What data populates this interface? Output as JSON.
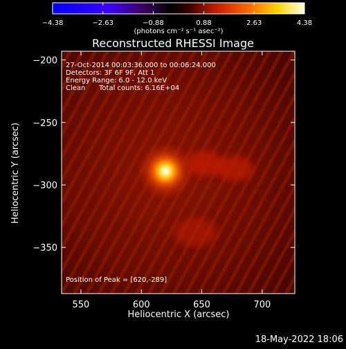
{
  "chart_data": {
    "type": "heatmap",
    "title": "Reconstructed RHESSI Image",
    "xlabel": "Heliocentric X (arcsec)",
    "ylabel": "Heliocentric Y (arcsec)",
    "xlim": [
      534,
      727
    ],
    "ylim": [
      -387,
      -193
    ],
    "x_ticks": [
      550,
      600,
      650,
      700
    ],
    "x_tick_labels": [
      "550",
      "600",
      "650",
      "700"
    ],
    "y_ticks": [
      -200,
      -250,
      -300,
      -350
    ],
    "y_tick_labels": [
      "−200",
      "−250",
      "−300",
      "−350"
    ],
    "colorbar": {
      "min": -4.38,
      "max": 4.38,
      "ticks": [
        -4.38,
        -2.63,
        -0.88,
        0.88,
        2.63,
        4.38
      ],
      "tick_labels": [
        "−4.38",
        "−2.63",
        "−0.88",
        "0.88",
        "2.63",
        "4.38"
      ],
      "label": "(photons cm⁻² s⁻¹ asec⁻²)",
      "colormap": "hot"
    },
    "annotations": {
      "time_range": "27-Oct-2014 00:03:36.000 to 00:06:24.000",
      "detectors": "Detectors: 3F 6F 9F, Att 1",
      "energy_range": "Energy Range: 6.0 - 12.0 keV",
      "clean_method": "Clean",
      "total_counts": "Total counts: 6.16E+04",
      "peak_position": "Position of Peak = [620,-289]"
    },
    "sources": [
      {
        "x": 620,
        "y": -289,
        "peak": 4.38,
        "sigma": 6
      },
      {
        "x": 652,
        "y": -283,
        "peak": 0.9,
        "sigma": 8
      },
      {
        "x": 677,
        "y": -287,
        "peak": 0.8,
        "sigma": 8
      },
      {
        "x": 645,
        "y": -338,
        "peak": 0.3,
        "sigma": 9
      }
    ]
  },
  "footer": {
    "timestamp": "18-May-2022 18:06"
  }
}
